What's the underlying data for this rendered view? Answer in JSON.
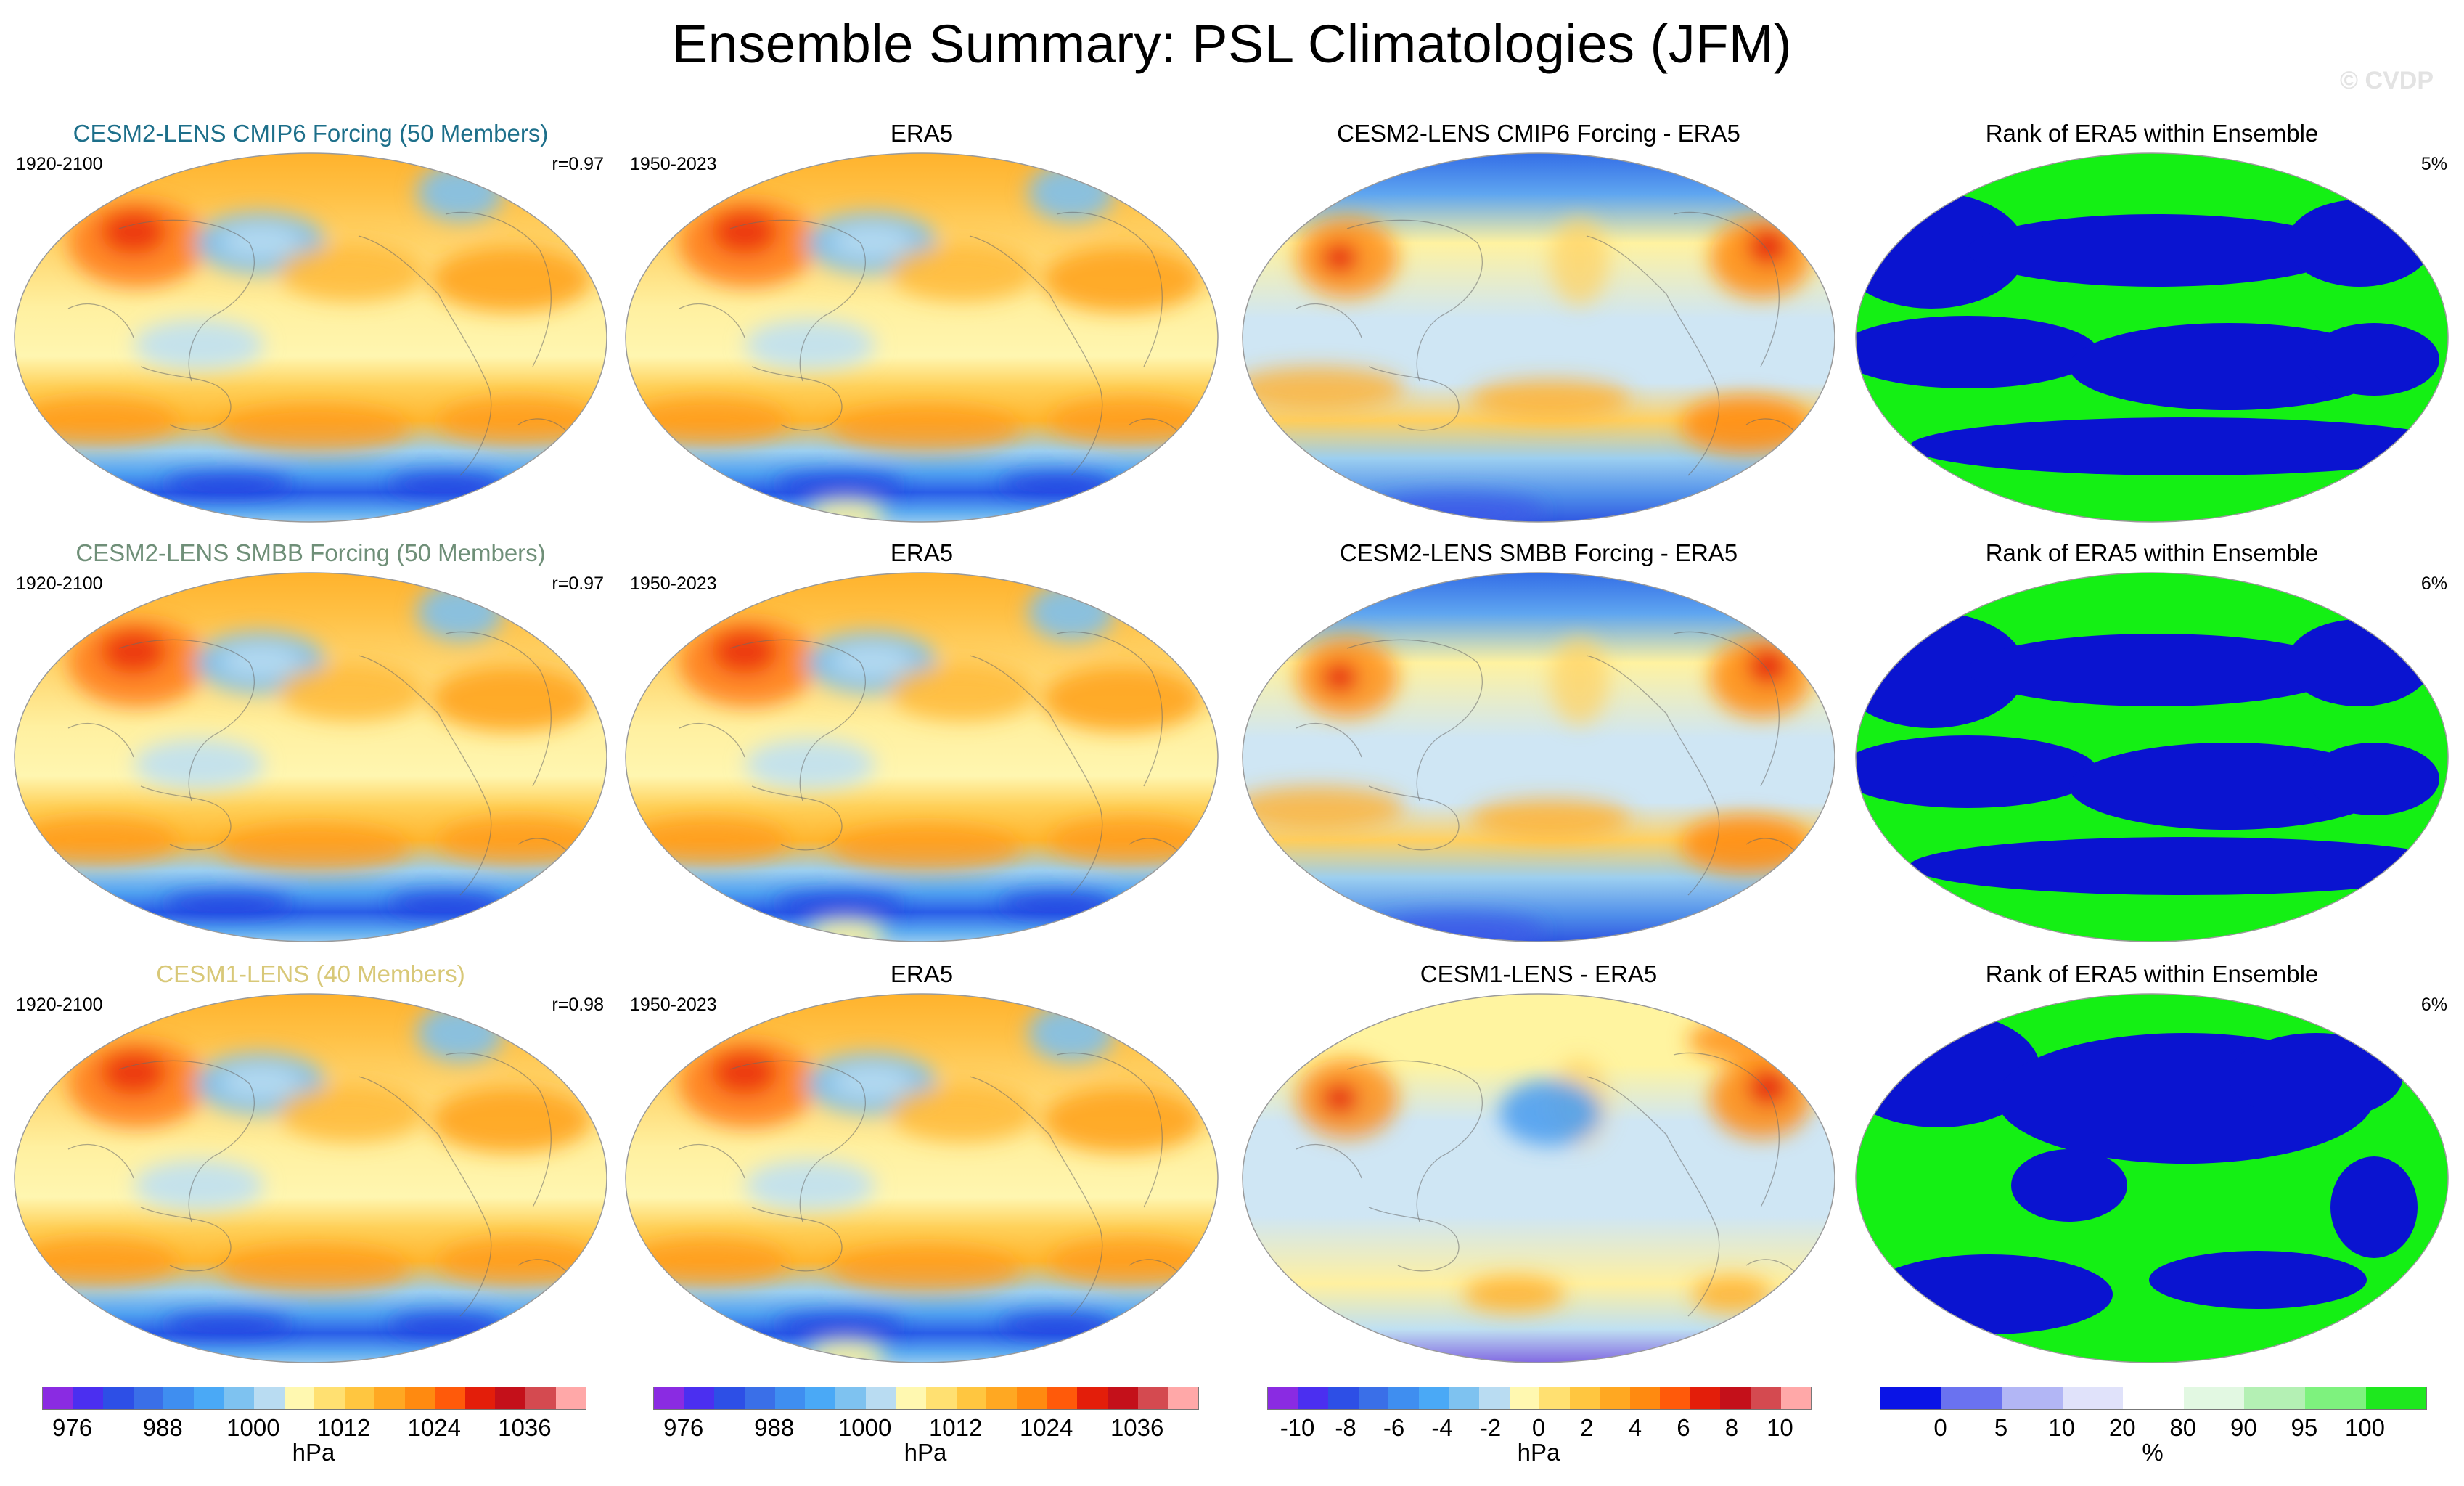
{
  "title": "Ensemble Summary: PSL Climatologies (JFM)",
  "copyright": "© CVDP",
  "rows": [
    {
      "model": {
        "title": "CESM2-LENS CMIP6 Forcing (50 Members)",
        "title_color": "#1d6f8a",
        "years": "1920-2100",
        "corr": "r=0.97"
      },
      "obs": {
        "title": "ERA5",
        "years": "1950-2023"
      },
      "diff": {
        "title": "CESM2-LENS CMIP6 Forcing - ERA5"
      },
      "rank": {
        "title": "Rank of ERA5 within Ensemble",
        "percent": "5%"
      }
    },
    {
      "model": {
        "title": "CESM2-LENS SMBB Forcing (50 Members)",
        "title_color": "#6f8f78",
        "years": "1920-2100",
        "corr": "r=0.97"
      },
      "obs": {
        "title": "ERA5",
        "years": "1950-2023"
      },
      "diff": {
        "title": "CESM2-LENS SMBB Forcing - ERA5"
      },
      "rank": {
        "title": "Rank of ERA5 within Ensemble",
        "percent": "6%"
      }
    },
    {
      "model": {
        "title": "CESM1-LENS (40 Members)",
        "title_color": "#d8c878",
        "years": "1920-2100",
        "corr": "r=0.98"
      },
      "obs": {
        "title": "ERA5",
        "years": "1950-2023"
      },
      "diff": {
        "title": "CESM1-LENS - ERA5"
      },
      "rank": {
        "title": "Rank of ERA5 within Ensemble",
        "percent": "6%"
      }
    }
  ],
  "colorbars": [
    {
      "unit": "hPa",
      "colors": [
        "#8a2be2",
        "#4b2ff0",
        "#2d4fe6",
        "#3a6fe8",
        "#3f8ef0",
        "#4aa9f6",
        "#7ec2f0",
        "#b9dcf2",
        "#fff8b0",
        "#ffe071",
        "#ffc640",
        "#ffa822",
        "#ff8a10",
        "#ff5a0a",
        "#e31e0a",
        "#c4101a",
        "#d44a50",
        "#ffa8a8"
      ],
      "ticks": [
        "976",
        "988",
        "1000",
        "1012",
        "1024",
        "1036"
      ]
    },
    {
      "unit": "hPa",
      "colors": [
        "#8a2be2",
        "#4b2ff0",
        "#2d4fe6",
        "#3a6fe8",
        "#3f8ef0",
        "#4aa9f6",
        "#7ec2f0",
        "#b9dcf2",
        "#fff8b0",
        "#ffe071",
        "#ffc640",
        "#ffa822",
        "#ff8a10",
        "#ff5a0a",
        "#e31e0a",
        "#c4101a",
        "#d44a50",
        "#ffa8a8"
      ],
      "ticks": [
        "976",
        "988",
        "1000",
        "1012",
        "1024",
        "1036"
      ]
    },
    {
      "unit": "hPa",
      "colors": [
        "#8a2be2",
        "#4b2ff0",
        "#2d4fe6",
        "#3a6fe8",
        "#3f8ef0",
        "#4aa9f6",
        "#7ec2f0",
        "#b9dcf2",
        "#fff8b0",
        "#ffe071",
        "#ffc640",
        "#ffa822",
        "#ff8a10",
        "#ff5a0a",
        "#e31e0a",
        "#c4101a",
        "#d44a50",
        "#ffa8a8"
      ],
      "ticks": [
        "-10",
        "-8",
        "-6",
        "-4",
        "-2",
        "0",
        "2",
        "4",
        "6",
        "8",
        "10"
      ]
    },
    {
      "unit": "%",
      "colors": [
        "#0a14e6",
        "#6a72f0",
        "#b2b6f5",
        "#e0e2fa",
        "#ffffff",
        "#e2f8e2",
        "#b4f0b4",
        "#7ef27e",
        "#1ee81e"
      ],
      "ticks": [
        "0",
        "5",
        "10",
        "20",
        "80",
        "90",
        "95",
        "100"
      ]
    }
  ]
}
